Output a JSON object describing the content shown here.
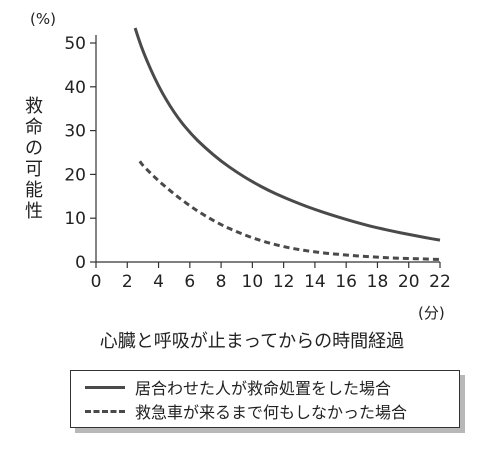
{
  "chart_data": {
    "type": "line",
    "y_unit_label": "(%)",
    "x_unit_label": "(分)",
    "ylabel": "救命の可能性",
    "xlabel": "心臓と呼吸が止まってからの時間経過",
    "xlim": [
      0,
      22
    ],
    "ylim": [
      0,
      50
    ],
    "x_ticks": [
      0,
      2,
      4,
      6,
      8,
      10,
      12,
      14,
      16,
      18,
      20,
      22
    ],
    "y_ticks": [
      0,
      10,
      20,
      30,
      40,
      50
    ],
    "grid": false,
    "legend_position": "bottom",
    "series": [
      {
        "name": "居合わせた人が救命処置をした場合",
        "style": "solid",
        "color": "#4a4a4a",
        "x": [
          2.5,
          3,
          4,
          5,
          6,
          7,
          8,
          9,
          10,
          11,
          12,
          13,
          14,
          15,
          16,
          17,
          18,
          19,
          20,
          21,
          22
        ],
        "y": [
          54,
          48,
          40,
          34,
          29.5,
          26,
          23,
          20.5,
          18.3,
          16.4,
          14.8,
          13.3,
          12,
          10.8,
          9.7,
          8.7,
          7.8,
          7,
          6.3,
          5.6,
          5
        ]
      },
      {
        "name": "救急車が来るまで何もしなかった場合",
        "style": "dashed",
        "color": "#4a4a4a",
        "x": [
          2.8,
          3,
          4,
          5,
          6,
          7,
          8,
          9,
          10,
          11,
          12,
          13,
          14,
          15,
          16,
          17,
          18,
          19,
          20,
          21,
          22
        ],
        "y": [
          23,
          22,
          18.5,
          15.5,
          12.8,
          10.5,
          8.5,
          6.9,
          5.5,
          4.4,
          3.5,
          2.8,
          2.3,
          1.9,
          1.6,
          1.3,
          1.1,
          0.9,
          0.8,
          0.7,
          0.6
        ]
      }
    ]
  }
}
